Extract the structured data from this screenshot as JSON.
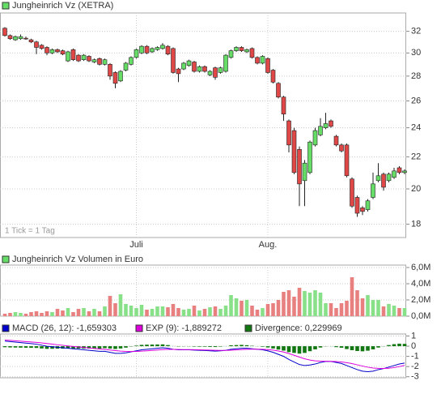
{
  "chart_data": [
    {
      "type": "candlestick",
      "title": "Jungheinrich Vz (XETRA)",
      "annotation": "1 Tick = 1 Tag",
      "categories": [
        null,
        null,
        null,
        null,
        null,
        null,
        null,
        null,
        null,
        null,
        null,
        null,
        null,
        null,
        null,
        null,
        null,
        null,
        null,
        null,
        null,
        null,
        null,
        null,
        null,
        "Juli",
        null,
        null,
        null,
        null,
        null,
        null,
        null,
        null,
        null,
        null,
        null,
        null,
        null,
        null,
        null,
        null,
        null,
        null,
        null,
        null,
        null,
        null,
        null,
        null,
        "Aug.",
        null,
        null,
        null,
        null,
        null,
        null,
        null,
        null,
        null,
        null,
        null,
        null,
        null,
        null,
        null,
        null,
        null,
        null,
        null,
        null,
        null,
        null,
        null,
        null,
        null,
        null
      ],
      "open": [
        32.3,
        31.6,
        31.2,
        31.3,
        31.35,
        31.2,
        31.0,
        30.7,
        30.5,
        30.0,
        30.3,
        30.2,
        29.3,
        30.3,
        29.8,
        29.4,
        29.7,
        29.2,
        29.5,
        29.0,
        29.0,
        28.3,
        27.6,
        28.5,
        29.0,
        29.6,
        30.0,
        30.6,
        30.1,
        30.3,
        30.4,
        30.6,
        30.4,
        28.6,
        28.6,
        28.9,
        29.2,
        28.4,
        28.8,
        28.1,
        28.7,
        28.3,
        28.4,
        29.6,
        30.2,
        30.5,
        30.1,
        30.4,
        29.6,
        29.1,
        29.5,
        28.5,
        27.4,
        26.3,
        24.5,
        23.8,
        22.5,
        20.5,
        21.0,
        22.8,
        23.5,
        24.0,
        24.5,
        23.4,
        22.8,
        22.8,
        20.6,
        19.5,
        18.9,
        18.8,
        19.5,
        20.5,
        20.9,
        20.5,
        20.7,
        21.3,
        21.0
      ],
      "high": [
        32.4,
        31.7,
        31.6,
        31.7,
        31.5,
        31.3,
        31.1,
        30.8,
        30.6,
        30.4,
        30.4,
        30.3,
        30.2,
        30.4,
        29.9,
        29.9,
        29.8,
        29.5,
        29.6,
        29.5,
        29.1,
        28.4,
        28.5,
        29.2,
        29.7,
        30.4,
        30.7,
        30.7,
        30.5,
        30.6,
        30.9,
        30.7,
        30.5,
        28.7,
        29.2,
        29.4,
        29.3,
        28.9,
        28.9,
        28.5,
        28.8,
        28.8,
        29.9,
        30.3,
        30.6,
        30.6,
        30.4,
        30.5,
        29.7,
        29.8,
        29.6,
        28.6,
        27.5,
        26.4,
        24.6,
        24.0,
        22.7,
        21.8,
        23.1,
        24.0,
        24.7,
        25.1,
        24.6,
        23.5,
        22.9,
        22.9,
        20.7,
        19.6,
        19.0,
        19.4,
        21.0,
        21.6,
        21.0,
        21.0,
        21.3,
        21.4,
        21.2
      ],
      "low": [
        31.5,
        31.2,
        31.1,
        31.2,
        31.2,
        30.9,
        29.9,
        30.3,
        29.8,
        29.9,
        30.0,
        29.8,
        29.2,
        29.3,
        29.2,
        29.3,
        29.2,
        29.1,
        28.9,
        28.9,
        27.7,
        27.0,
        27.5,
        28.4,
        28.9,
        29.5,
        29.9,
        29.9,
        30.0,
        30.2,
        30.3,
        29.8,
        28.2,
        27.5,
        28.5,
        28.8,
        28.3,
        28.3,
        28.3,
        28.0,
        27.7,
        28.2,
        28.3,
        29.5,
        30.1,
        30.1,
        30.0,
        29.5,
        29.0,
        29.0,
        28.2,
        27.4,
        26.2,
        24.5,
        22.3,
        20.9,
        19.0,
        19.0,
        20.9,
        22.7,
        23.4,
        23.9,
        24.0,
        22.7,
        22.3,
        20.7,
        18.9,
        18.4,
        18.5,
        18.7,
        19.4,
        20.4,
        19.9,
        20.4,
        20.6,
        20.9,
        20.9
      ],
      "close": [
        31.6,
        31.3,
        31.5,
        31.5,
        31.3,
        31.0,
        30.5,
        30.4,
        30.0,
        30.3,
        30.1,
        29.9,
        30.1,
        29.4,
        29.3,
        29.8,
        29.3,
        29.4,
        29.0,
        29.4,
        28.0,
        27.4,
        28.4,
        29.1,
        29.6,
        30.3,
        30.6,
        30.0,
        30.4,
        30.5,
        30.7,
        29.9,
        28.3,
        28.2,
        29.1,
        29.3,
        28.4,
        28.8,
        28.4,
        28.4,
        27.9,
        28.7,
        29.8,
        30.2,
        30.5,
        30.2,
        30.3,
        29.6,
        29.1,
        29.7,
        28.3,
        27.5,
        26.3,
        25.0,
        22.8,
        21.0,
        20.3,
        21.6,
        23.0,
        23.8,
        24.1,
        24.3,
        24.1,
        22.8,
        22.4,
        20.8,
        19.0,
        18.6,
        18.7,
        19.3,
        20.3,
        20.8,
        20.1,
        20.9,
        21.1,
        21.0,
        21.1
      ],
      "up_color": "#66dd66",
      "down_color": "#e04848",
      "ylim": [
        17.3,
        33.8
      ],
      "yticks": [
        18,
        20,
        22,
        24,
        26,
        28,
        30,
        32
      ],
      "log": true,
      "grid": true
    },
    {
      "type": "bar",
      "title": "Jungheinrich Vz Volumen in Euro",
      "values": [
        300000,
        400000,
        500000,
        400000,
        300000,
        500000,
        600000,
        400000,
        600000,
        500000,
        900000,
        700000,
        1000000,
        500000,
        900000,
        1000000,
        600000,
        900000,
        600000,
        1200000,
        2500000,
        1600000,
        2700000,
        1500000,
        1300000,
        1000000,
        1400000,
        800000,
        900000,
        1200000,
        1200000,
        1100000,
        1500000,
        1000000,
        800000,
        900000,
        1300000,
        700000,
        900000,
        1100000,
        1200000,
        900000,
        1300000,
        2600000,
        2200000,
        1900000,
        2000000,
        1300000,
        800000,
        1000000,
        1500000,
        1600000,
        2000000,
        3000000,
        3200000,
        2400000,
        3500000,
        3100000,
        2900000,
        3200000,
        2900000,
        1600000,
        1600000,
        1000000,
        1600000,
        1900000,
        4800000,
        3200000,
        2200000,
        2600000,
        2000000,
        2000000,
        1200000,
        1500000,
        1300000,
        1000000,
        1000000
      ],
      "up_color": "#88e088",
      "down_color": "#e88080",
      "legend_color": "#66dd66",
      "ylim": [
        0,
        6300000
      ],
      "yticks": [
        {
          "value": 0,
          "label": "0,0M"
        },
        {
          "value": 2000000,
          "label": "2,0M"
        },
        {
          "value": 4000000,
          "label": "4,0M"
        },
        {
          "value": 6000000,
          "label": "6,0M"
        }
      ],
      "grid": true
    },
    {
      "type": "macd",
      "series": [
        {
          "name": "MACD (26, 12)",
          "legend": "MACD (26, 12): -1,659303",
          "kind": "line",
          "color": "#0000cc",
          "values": [
            0.5,
            0.45,
            0.4,
            0.35,
            0.3,
            0.25,
            0.2,
            0.1,
            0.0,
            -0.05,
            -0.1,
            -0.15,
            -0.2,
            -0.25,
            -0.3,
            -0.35,
            -0.4,
            -0.45,
            -0.5,
            -0.5,
            -0.6,
            -0.7,
            -0.7,
            -0.65,
            -0.55,
            -0.45,
            -0.35,
            -0.3,
            -0.25,
            -0.2,
            -0.15,
            -0.2,
            -0.3,
            -0.35,
            -0.35,
            -0.35,
            -0.38,
            -0.4,
            -0.42,
            -0.45,
            -0.48,
            -0.45,
            -0.4,
            -0.3,
            -0.25,
            -0.2,
            -0.2,
            -0.25,
            -0.3,
            -0.35,
            -0.45,
            -0.6,
            -0.8,
            -1.0,
            -1.3,
            -1.55,
            -1.8,
            -1.9,
            -1.85,
            -1.75,
            -1.6,
            -1.5,
            -1.5,
            -1.6,
            -1.7,
            -1.9,
            -2.1,
            -2.3,
            -2.45,
            -2.5,
            -2.45,
            -2.3,
            -2.2,
            -2.05,
            -1.9,
            -1.75,
            -1.659303
          ]
        },
        {
          "name": "EXP (9)",
          "legend": "EXP (9): -1,889272",
          "kind": "line",
          "color": "#dd00dd",
          "values": [
            0.6,
            0.57,
            0.53,
            0.49,
            0.45,
            0.41,
            0.37,
            0.32,
            0.26,
            0.2,
            0.14,
            0.09,
            0.03,
            -0.02,
            -0.07,
            -0.12,
            -0.17,
            -0.22,
            -0.27,
            -0.31,
            -0.37,
            -0.43,
            -0.48,
            -0.51,
            -0.52,
            -0.51,
            -0.48,
            -0.45,
            -0.41,
            -0.37,
            -0.33,
            -0.31,
            -0.31,
            -0.32,
            -0.33,
            -0.33,
            -0.34,
            -0.35,
            -0.37,
            -0.38,
            -0.4,
            -0.41,
            -0.41,
            -0.39,
            -0.36,
            -0.33,
            -0.3,
            -0.29,
            -0.29,
            -0.3,
            -0.33,
            -0.38,
            -0.47,
            -0.57,
            -0.72,
            -0.89,
            -1.07,
            -1.24,
            -1.36,
            -1.44,
            -1.47,
            -1.48,
            -1.49,
            -1.51,
            -1.55,
            -1.62,
            -1.71,
            -1.83,
            -1.95,
            -2.06,
            -2.14,
            -2.17,
            -2.18,
            -2.16,
            -2.1,
            -2.0,
            -1.889272
          ]
        },
        {
          "name": "Divergence",
          "legend": "Divergence: 0,229969",
          "kind": "bar",
          "color": "#117711",
          "values": [
            -0.1,
            -0.12,
            -0.13,
            -0.14,
            -0.15,
            -0.16,
            -0.17,
            -0.22,
            -0.26,
            -0.25,
            -0.24,
            -0.24,
            -0.23,
            -0.23,
            -0.23,
            -0.23,
            -0.23,
            -0.23,
            -0.23,
            -0.19,
            -0.23,
            -0.27,
            -0.22,
            -0.14,
            -0.03,
            0.06,
            0.13,
            0.15,
            0.16,
            0.17,
            0.18,
            0.11,
            0.01,
            -0.03,
            -0.02,
            -0.02,
            -0.04,
            -0.05,
            -0.05,
            -0.07,
            -0.08,
            -0.04,
            0.01,
            0.09,
            0.11,
            0.13,
            0.1,
            0.04,
            -0.01,
            -0.05,
            -0.12,
            -0.22,
            -0.33,
            -0.43,
            -0.58,
            -0.66,
            -0.73,
            -0.66,
            -0.49,
            -0.31,
            -0.13,
            -0.02,
            -0.01,
            -0.09,
            -0.15,
            -0.28,
            -0.39,
            -0.47,
            -0.5,
            -0.44,
            -0.31,
            -0.13,
            -0.02,
            0.11,
            0.2,
            0.25,
            0.229969
          ]
        }
      ],
      "ylim": [
        -3.1,
        1.2
      ],
      "yticks": [
        1,
        0,
        -1,
        -2,
        -3
      ],
      "grid": true
    }
  ]
}
